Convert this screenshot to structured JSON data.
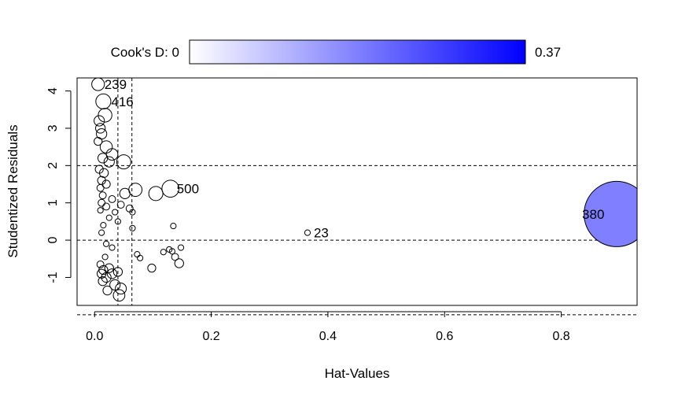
{
  "chart_data": {
    "type": "scatter",
    "xlabel": "Hat-Values",
    "ylabel": "Studentized Residuals",
    "xlim": [
      -0.03,
      0.93
    ],
    "ylim": [
      -1.75,
      4.35
    ],
    "x_ticks": [
      "0.0",
      "0.2",
      "0.4",
      "0.6",
      "0.8"
    ],
    "x_tick_values": [
      0.0,
      0.2,
      0.4,
      0.6,
      0.8
    ],
    "y_ticks": [
      "-1",
      "0",
      "1",
      "2",
      "3",
      "4"
    ],
    "y_tick_values": [
      -1,
      0,
      1,
      2,
      3,
      4
    ],
    "reference_lines": {
      "h": [
        -2,
        0,
        2
      ],
      "v": [
        0.04,
        0.064
      ]
    },
    "legend": {
      "label_left": "Cook's D: 0",
      "label_right": "0.37",
      "color_low": "#ffffff",
      "color_high": "#0000ff",
      "position": "top"
    },
    "point_fill_color": "#7f7fff",
    "points": [
      {
        "x": 0.006,
        "y": 4.18,
        "cookd": 0.01,
        "label": "239"
      },
      {
        "x": 0.015,
        "y": 3.72,
        "cookd": 0.015,
        "label": "416"
      },
      {
        "x": 0.13,
        "y": 1.38,
        "cookd": 0.02,
        "label": "500"
      },
      {
        "x": 0.365,
        "y": 0.2,
        "cookd": 0.001,
        "label": "23"
      },
      {
        "x": 0.895,
        "y": 0.7,
        "cookd": 0.37,
        "label": "380"
      },
      {
        "x": 0.018,
        "y": 3.35,
        "cookd": 0.012,
        "label": ""
      },
      {
        "x": 0.008,
        "y": 3.2,
        "cookd": 0.006,
        "label": ""
      },
      {
        "x": 0.01,
        "y": 3.0,
        "cookd": 0.005,
        "label": ""
      },
      {
        "x": 0.012,
        "y": 2.85,
        "cookd": 0.006,
        "label": ""
      },
      {
        "x": 0.006,
        "y": 2.65,
        "cookd": 0.003,
        "label": ""
      },
      {
        "x": 0.02,
        "y": 2.5,
        "cookd": 0.009,
        "label": ""
      },
      {
        "x": 0.03,
        "y": 2.3,
        "cookd": 0.008,
        "label": ""
      },
      {
        "x": 0.014,
        "y": 2.2,
        "cookd": 0.005,
        "label": ""
      },
      {
        "x": 0.025,
        "y": 2.1,
        "cookd": 0.006,
        "label": ""
      },
      {
        "x": 0.05,
        "y": 2.1,
        "cookd": 0.013,
        "label": ""
      },
      {
        "x": 0.008,
        "y": 1.9,
        "cookd": 0.003,
        "label": ""
      },
      {
        "x": 0.016,
        "y": 1.8,
        "cookd": 0.004,
        "label": ""
      },
      {
        "x": 0.012,
        "y": 1.6,
        "cookd": 0.003,
        "label": ""
      },
      {
        "x": 0.02,
        "y": 1.5,
        "cookd": 0.003,
        "label": ""
      },
      {
        "x": 0.01,
        "y": 1.4,
        "cookd": 0.002,
        "label": ""
      },
      {
        "x": 0.07,
        "y": 1.35,
        "cookd": 0.011,
        "label": ""
      },
      {
        "x": 0.052,
        "y": 1.25,
        "cookd": 0.006,
        "label": ""
      },
      {
        "x": 0.105,
        "y": 1.25,
        "cookd": 0.013,
        "label": ""
      },
      {
        "x": 0.014,
        "y": 1.2,
        "cookd": 0.002,
        "label": ""
      },
      {
        "x": 0.03,
        "y": 1.1,
        "cookd": 0.002,
        "label": ""
      },
      {
        "x": 0.012,
        "y": 1.0,
        "cookd": 0.002,
        "label": ""
      },
      {
        "x": 0.045,
        "y": 0.95,
        "cookd": 0.002,
        "label": ""
      },
      {
        "x": 0.02,
        "y": 0.9,
        "cookd": 0.002,
        "label": ""
      },
      {
        "x": 0.06,
        "y": 0.85,
        "cookd": 0.002,
        "label": ""
      },
      {
        "x": 0.01,
        "y": 0.8,
        "cookd": 0.001,
        "label": ""
      },
      {
        "x": 0.035,
        "y": 0.75,
        "cookd": 0.001,
        "label": ""
      },
      {
        "x": 0.065,
        "y": 0.75,
        "cookd": 0.001,
        "label": ""
      },
      {
        "x": 0.025,
        "y": 0.6,
        "cookd": 0.001,
        "label": ""
      },
      {
        "x": 0.04,
        "y": 0.5,
        "cookd": 0.001,
        "label": ""
      },
      {
        "x": 0.015,
        "y": 0.4,
        "cookd": 0.001,
        "label": ""
      },
      {
        "x": 0.135,
        "y": 0.38,
        "cookd": 0.001,
        "label": ""
      },
      {
        "x": 0.065,
        "y": 0.32,
        "cookd": 0.001,
        "label": ""
      },
      {
        "x": 0.012,
        "y": 0.2,
        "cookd": 0.001,
        "label": ""
      },
      {
        "x": 0.02,
        "y": -0.1,
        "cookd": 0.001,
        "label": ""
      },
      {
        "x": 0.03,
        "y": -0.2,
        "cookd": 0.001,
        "label": ""
      },
      {
        "x": 0.148,
        "y": -0.2,
        "cookd": 0.001,
        "label": ""
      },
      {
        "x": 0.128,
        "y": -0.25,
        "cookd": 0.001,
        "label": ""
      },
      {
        "x": 0.118,
        "y": -0.32,
        "cookd": 0.001,
        "label": ""
      },
      {
        "x": 0.133,
        "y": -0.3,
        "cookd": 0.001,
        "label": ""
      },
      {
        "x": 0.073,
        "y": -0.38,
        "cookd": 0.001,
        "label": ""
      },
      {
        "x": 0.078,
        "y": -0.48,
        "cookd": 0.001,
        "label": ""
      },
      {
        "x": 0.018,
        "y": -0.45,
        "cookd": 0.001,
        "label": ""
      },
      {
        "x": 0.138,
        "y": -0.45,
        "cookd": 0.002,
        "label": ""
      },
      {
        "x": 0.145,
        "y": -0.62,
        "cookd": 0.004,
        "label": ""
      },
      {
        "x": 0.01,
        "y": -0.65,
        "cookd": 0.002,
        "label": ""
      },
      {
        "x": 0.098,
        "y": -0.75,
        "cookd": 0.003,
        "label": ""
      },
      {
        "x": 0.015,
        "y": -0.8,
        "cookd": 0.004,
        "label": ""
      },
      {
        "x": 0.025,
        "y": -0.75,
        "cookd": 0.004,
        "label": ""
      },
      {
        "x": 0.012,
        "y": -0.9,
        "cookd": 0.004,
        "label": ""
      },
      {
        "x": 0.02,
        "y": -1.0,
        "cookd": 0.005,
        "label": ""
      },
      {
        "x": 0.03,
        "y": -0.9,
        "cookd": 0.005,
        "label": ""
      },
      {
        "x": 0.04,
        "y": -0.85,
        "cookd": 0.004,
        "label": ""
      },
      {
        "x": 0.014,
        "y": -1.1,
        "cookd": 0.004,
        "label": ""
      },
      {
        "x": 0.035,
        "y": -1.2,
        "cookd": 0.006,
        "label": ""
      },
      {
        "x": 0.045,
        "y": -1.3,
        "cookd": 0.007,
        "label": ""
      },
      {
        "x": 0.042,
        "y": -1.48,
        "cookd": 0.008,
        "label": ""
      },
      {
        "x": 0.022,
        "y": -1.35,
        "cookd": 0.004,
        "label": ""
      }
    ]
  }
}
